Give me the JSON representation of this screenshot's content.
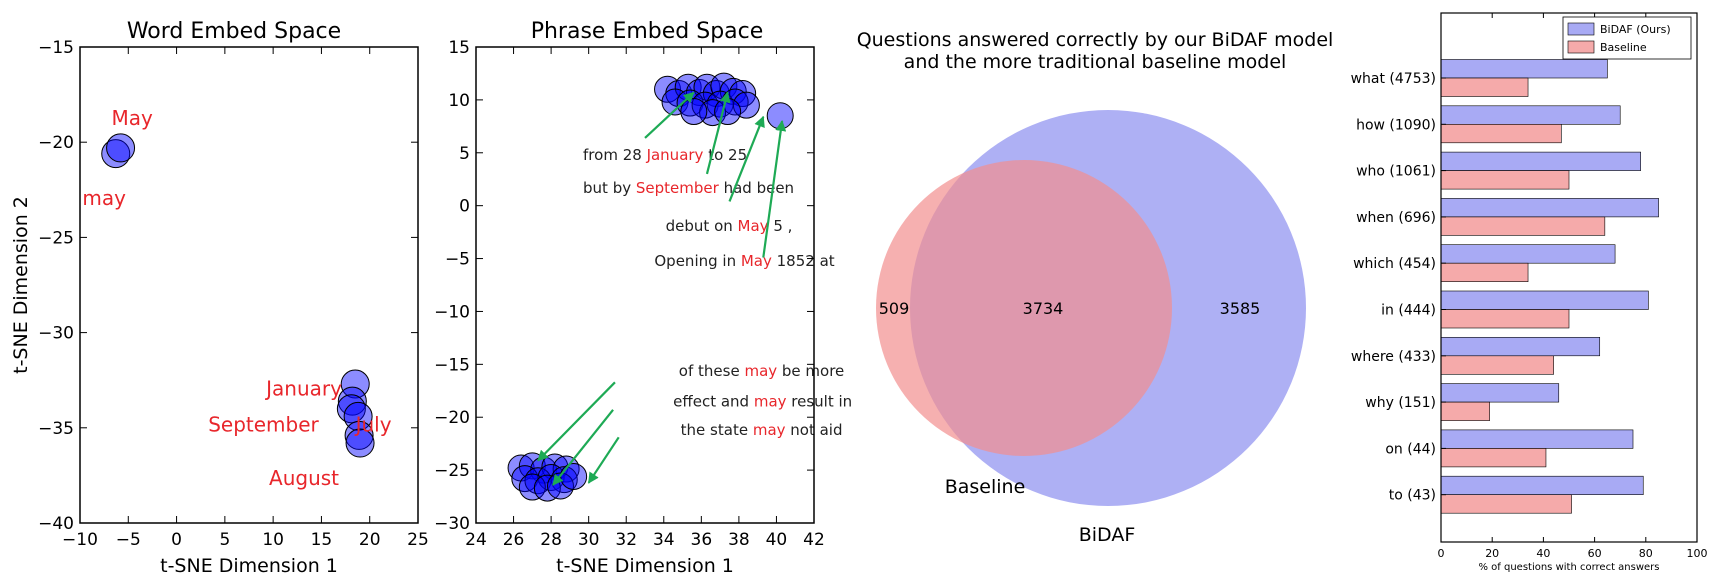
{
  "chart_data": [
    {
      "type": "scatter",
      "title": "Word Embed Space",
      "xlabel": "t-SNE Dimension 1",
      "ylabel": "t-SNE Dimension 2",
      "xlim": [
        -10,
        25
      ],
      "ylim": [
        -40,
        -15
      ],
      "xticks": [
        -10,
        -5,
        0,
        5,
        10,
        15,
        20,
        25
      ],
      "yticks": [
        -15,
        -20,
        -25,
        -30,
        -35,
        -40
      ],
      "xtick_labels": [
        "−10",
        "−5",
        "0",
        "5",
        "10",
        "15",
        "20",
        "25"
      ],
      "ytick_labels": [
        "−15",
        "−20",
        "−25",
        "−30",
        "−35",
        "−40"
      ],
      "points": [
        {
          "x": -6.3,
          "y": -20.6
        },
        {
          "x": -5.8,
          "y": -20.3
        },
        {
          "x": 18.5,
          "y": -32.7
        },
        {
          "x": 18.2,
          "y": -33.6
        },
        {
          "x": 18.1,
          "y": -34.0
        },
        {
          "x": 18.8,
          "y": -34.4
        },
        {
          "x": 18.9,
          "y": -35.4
        },
        {
          "x": 19.0,
          "y": -35.8
        }
      ],
      "labels": [
        {
          "text": "May",
          "x": -4.6,
          "y": -19.1
        },
        {
          "text": "may",
          "x": -7.5,
          "y": -23.3
        },
        {
          "text": "January",
          "x": 13.2,
          "y": -33.3
        },
        {
          "text": "September",
          "x": 9.0,
          "y": -35.2
        },
        {
          "text": "July",
          "x": 20.4,
          "y": -35.2
        },
        {
          "text": "August",
          "x": 13.2,
          "y": -38.0
        }
      ]
    },
    {
      "type": "scatter",
      "title": "Phrase Embed Space",
      "xlabel": "t-SNE Dimension 1",
      "ylabel": "",
      "xlim": [
        24,
        42
      ],
      "ylim": [
        -30,
        15
      ],
      "xticks": [
        24,
        26,
        28,
        30,
        32,
        34,
        36,
        38,
        40,
        42
      ],
      "yticks": [
        15,
        10,
        5,
        0,
        -5,
        -10,
        -15,
        -20,
        -25,
        -30
      ],
      "xtick_labels": [
        "24",
        "26",
        "28",
        "30",
        "32",
        "34",
        "36",
        "38",
        "40",
        "42"
      ],
      "ytick_labels": [
        "15",
        "10",
        "5",
        "0",
        "−5",
        "−10",
        "−15",
        "−20",
        "−25",
        "−30"
      ],
      "points": [
        {
          "x": 34.2,
          "y": 11.0
        },
        {
          "x": 34.8,
          "y": 10.6
        },
        {
          "x": 35.3,
          "y": 11.2
        },
        {
          "x": 35.9,
          "y": 10.7
        },
        {
          "x": 36.3,
          "y": 11.2
        },
        {
          "x": 36.8,
          "y": 10.6
        },
        {
          "x": 37.2,
          "y": 11.3
        },
        {
          "x": 37.7,
          "y": 10.8
        },
        {
          "x": 38.2,
          "y": 10.6
        },
        {
          "x": 34.6,
          "y": 9.8
        },
        {
          "x": 35.4,
          "y": 9.7
        },
        {
          "x": 36.2,
          "y": 9.5
        },
        {
          "x": 37.0,
          "y": 9.6
        },
        {
          "x": 37.8,
          "y": 9.8
        },
        {
          "x": 38.4,
          "y": 9.5
        },
        {
          "x": 36.6,
          "y": 8.8
        },
        {
          "x": 37.4,
          "y": 8.9
        },
        {
          "x": 35.6,
          "y": 8.9
        },
        {
          "x": 40.2,
          "y": 8.5
        },
        {
          "x": 26.4,
          "y": -24.8
        },
        {
          "x": 27.0,
          "y": -24.6
        },
        {
          "x": 27.6,
          "y": -25.0
        },
        {
          "x": 28.2,
          "y": -24.7
        },
        {
          "x": 28.8,
          "y": -24.9
        },
        {
          "x": 26.6,
          "y": -25.8
        },
        {
          "x": 27.3,
          "y": -26.0
        },
        {
          "x": 28.0,
          "y": -25.7
        },
        {
          "x": 28.7,
          "y": -25.9
        },
        {
          "x": 27.0,
          "y": -26.6
        },
        {
          "x": 27.8,
          "y": -26.7
        },
        {
          "x": 28.5,
          "y": -26.5
        },
        {
          "x": 29.2,
          "y": -25.6
        }
      ],
      "annotations": [
        {
          "parts": [
            {
              "t": "from 28 ",
              "red": false
            },
            {
              "t": "January",
              "red": true
            },
            {
              "t": " to 25",
              "red": false
            }
          ],
          "x": 29.7,
          "y": 4.3,
          "anchor": "start",
          "from": [
            33.0,
            6.4
          ],
          "to": [
            35.6,
            10.7
          ]
        },
        {
          "parts": [
            {
              "t": "but by ",
              "red": false
            },
            {
              "t": "September",
              "red": true
            },
            {
              "t": " had been",
              "red": false
            }
          ],
          "x": 29.7,
          "y": 1.2,
          "anchor": "start",
          "from": [
            36.3,
            3.0
          ],
          "to": [
            37.4,
            10.7
          ]
        },
        {
          "parts": [
            {
              "t": "debut on ",
              "red": false
            },
            {
              "t": "May",
              "red": true
            },
            {
              "t": " 5 ,",
              "red": false
            }
          ],
          "x": 34.1,
          "y": -2.4,
          "anchor": "start",
          "from": [
            37.5,
            0.4
          ],
          "to": [
            39.3,
            8.4
          ]
        },
        {
          "parts": [
            {
              "t": "Opening in ",
              "red": false
            },
            {
              "t": "May",
              "red": true
            },
            {
              "t": " 1852 at",
              "red": false
            }
          ],
          "x": 33.5,
          "y": -5.7,
          "anchor": "start",
          "from": [
            39.3,
            -4.9
          ],
          "to": [
            40.3,
            8.0
          ]
        },
        {
          "parts": [
            {
              "t": "of these ",
              "red": false
            },
            {
              "t": "may",
              "red": true
            },
            {
              "t": " be more",
              "red": false
            }
          ],
          "x": 34.8,
          "y": -16.1,
          "anchor": "start",
          "from": [
            31.4,
            -16.7
          ],
          "to": [
            27.3,
            -24.1
          ]
        },
        {
          "parts": [
            {
              "t": "effect and ",
              "red": false
            },
            {
              "t": "may",
              "red": true
            },
            {
              "t": " result in",
              "red": false
            }
          ],
          "x": 34.5,
          "y": -19.0,
          "anchor": "start",
          "from": [
            31.3,
            -19.3
          ],
          "to": [
            28.1,
            -26.4
          ]
        },
        {
          "parts": [
            {
              "t": "the state ",
              "red": false
            },
            {
              "t": "may",
              "red": true
            },
            {
              "t": " not aid",
              "red": false
            }
          ],
          "x": 34.9,
          "y": -21.7,
          "anchor": "start",
          "from": [
            31.6,
            -21.9
          ],
          "to": [
            30.0,
            -26.2
          ]
        }
      ]
    },
    {
      "type": "venn",
      "title_lines": [
        "Questions answered correctly by our BiDAF model",
        "and the more traditional baseline model"
      ],
      "sets": [
        {
          "name": "Baseline",
          "size": 4243,
          "color": "#f28e8e"
        },
        {
          "name": "BiDAF",
          "size": 7319,
          "color": "#8b8ef0"
        }
      ],
      "regions": {
        "baseline_only": "509",
        "both": "3734",
        "bidaf_only": "3585"
      }
    },
    {
      "type": "bar",
      "orientation": "horizontal",
      "categories": [
        "what (4753)",
        "how (1090)",
        "who (1061)",
        "when (696)",
        "which (454)",
        "in (444)",
        "where (433)",
        "why (151)",
        "on (44)",
        "to (43)"
      ],
      "series": [
        {
          "name": "BiDAF (Ours)",
          "color": "#8b8ef0",
          "values": [
            65,
            70,
            78,
            85,
            68,
            81,
            62,
            46,
            75,
            79
          ]
        },
        {
          "name": "Baseline",
          "color": "#f28e8e",
          "values": [
            34,
            47,
            50,
            64,
            34,
            50,
            44,
            19,
            41,
            51
          ]
        }
      ],
      "xlim": [
        0,
        100
      ],
      "xticks": [
        0,
        20,
        40,
        60,
        80,
        100
      ],
      "xtick_labels": [
        "0",
        "20",
        "40",
        "60",
        "80",
        "100"
      ],
      "xlabel": "% of questions with correct answers",
      "legend": "top-right"
    }
  ]
}
